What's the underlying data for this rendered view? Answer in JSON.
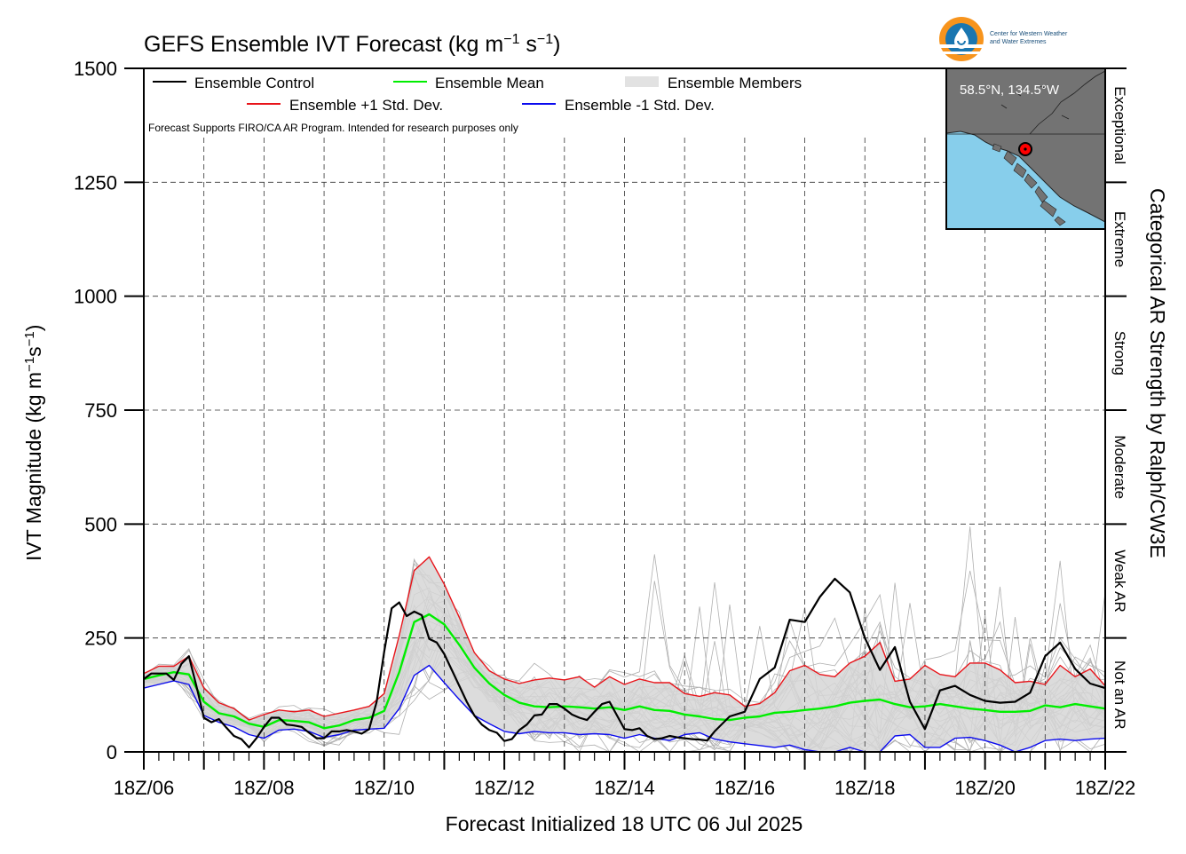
{
  "chart_data": {
    "type": "line",
    "title": "GEFS Ensemble IVT Forecast (kg m",
    "title_units": {
      "sup1": "−1",
      "mid": " s",
      "sup2": "−1",
      "end": ")"
    },
    "ylabel": "IVT Magnitude (kg m",
    "ylabel_units": {
      "sup1": "−1",
      "mid": "s",
      "sup2": "−1",
      "end": ")"
    },
    "xlabel": "Forecast Initialized 18 UTC 06 Jul 2025",
    "right_label": "Categorical AR Strength by Ralph/CW3E",
    "note": "Forecast Supports FIRO/CA AR Program. Intended for research purposes only",
    "ylim": [
      0,
      1500
    ],
    "xlim_hours": [
      0,
      384
    ],
    "x_tick_labels": [
      "18Z/06",
      "18Z/08",
      "18Z/10",
      "18Z/12",
      "18Z/14",
      "18Z/16",
      "18Z/18",
      "18Z/20",
      "18Z/22"
    ],
    "y_tick_labels": [
      "0",
      "250",
      "500",
      "750",
      "1000",
      "1250",
      "1500"
    ],
    "grid": true,
    "legend_position": "top-left",
    "legend": {
      "control": "Ensemble Control",
      "mean": "Ensemble Mean",
      "members": "Ensemble Members",
      "plus_sd": "Ensemble +1 Std. Dev.",
      "minus_sd": "Ensemble -1 Std. Dev."
    },
    "categories_ar": [
      "Not an AR",
      "Weak AR",
      "Moderate",
      "Strong",
      "Extreme",
      "Exceptional"
    ],
    "category_bounds": [
      0,
      250,
      500,
      750,
      1000,
      1250,
      1500
    ],
    "colors": {
      "control": "#000000",
      "mean": "#00ee00",
      "plus_sd": "#e8141a",
      "minus_sd": "#0a0aee",
      "members": "#b0b0b0",
      "shade": "#d6d6d6",
      "grid": "#333333"
    },
    "series": [
      {
        "name": "Ensemble Control",
        "x": [
          0,
          3,
          6,
          9,
          12,
          15,
          18,
          21,
          24,
          27,
          30,
          33,
          36,
          39,
          42,
          45,
          48,
          51,
          54,
          57,
          60,
          63,
          66,
          69,
          72,
          75,
          78,
          81,
          84,
          87,
          90,
          93,
          96,
          99,
          102,
          105,
          108,
          111,
          114,
          117,
          120,
          123,
          126,
          129,
          132,
          135,
          138,
          141,
          144,
          147,
          150,
          153,
          156,
          159,
          162,
          165,
          168,
          171,
          174,
          177,
          180,
          183,
          186,
          189,
          192,
          195,
          198,
          201,
          204,
          207,
          210,
          213,
          216,
          219,
          222,
          225,
          228,
          234,
          240,
          246,
          252,
          258,
          264,
          270,
          276,
          282,
          288,
          294,
          300,
          306,
          312,
          318,
          324,
          330,
          336,
          342,
          348,
          354,
          360,
          366,
          372,
          378,
          384
        ],
        "values": [
          160,
          172,
          172,
          172,
          158,
          193,
          210,
          145,
          75,
          65,
          72,
          53,
          35,
          28,
          10,
          30,
          55,
          75,
          75,
          60,
          58,
          55,
          42,
          30,
          30,
          45,
          45,
          48,
          45,
          40,
          50,
          110,
          220,
          315,
          328,
          298,
          308,
          300,
          248,
          240,
          215,
          180,
          145,
          110,
          80,
          60,
          48,
          42,
          24,
          28,
          48,
          60,
          80,
          82,
          105,
          105,
          95,
          82,
          75,
          70,
          88,
          105,
          110,
          80,
          50,
          48,
          52,
          35,
          28,
          30,
          35,
          32,
          30,
          28,
          27,
          25,
          45,
          78,
          88,
          160,
          185,
          290,
          285,
          340,
          380,
          350,
          250,
          180,
          230,
          110,
          50,
          135,
          145,
          125,
          112,
          108,
          110,
          130,
          210,
          240,
          182,
          150,
          140
        ],
        "color_key": "control"
      },
      {
        "name": "Ensemble Mean",
        "x": [
          0,
          6,
          12,
          18,
          24,
          30,
          36,
          42,
          48,
          54,
          60,
          66,
          72,
          78,
          84,
          90,
          96,
          102,
          108,
          114,
          120,
          126,
          132,
          138,
          144,
          150,
          156,
          162,
          168,
          174,
          180,
          186,
          192,
          198,
          204,
          210,
          216,
          222,
          228,
          234,
          240,
          246,
          252,
          258,
          264,
          270,
          276,
          282,
          288,
          294,
          300,
          306,
          312,
          318,
          324,
          330,
          336,
          342,
          348,
          354,
          360,
          366,
          372,
          378,
          384
        ],
        "values": [
          160,
          168,
          175,
          170,
          110,
          85,
          78,
          62,
          55,
          70,
          68,
          65,
          52,
          58,
          70,
          75,
          90,
          175,
          285,
          302,
          280,
          235,
          185,
          150,
          125,
          108,
          100,
          98,
          100,
          98,
          95,
          98,
          92,
          100,
          92,
          90,
          82,
          78,
          72,
          70,
          75,
          78,
          86,
          88,
          92,
          95,
          100,
          108,
          112,
          115,
          105,
          98,
          100,
          105,
          100,
          95,
          92,
          88,
          88,
          90,
          102,
          98,
          105,
          100,
          95
        ],
        "color_key": "mean"
      },
      {
        "name": "Ensemble +1 Std. Dev.",
        "x": [
          0,
          6,
          12,
          18,
          24,
          30,
          36,
          42,
          48,
          54,
          60,
          66,
          72,
          78,
          84,
          90,
          96,
          102,
          108,
          114,
          120,
          126,
          132,
          138,
          144,
          150,
          156,
          162,
          168,
          174,
          180,
          186,
          192,
          198,
          204,
          210,
          216,
          222,
          228,
          234,
          240,
          246,
          252,
          258,
          264,
          270,
          276,
          282,
          288,
          294,
          300,
          306,
          312,
          318,
          324,
          330,
          336,
          342,
          348,
          354,
          360,
          366,
          372,
          378,
          384
        ],
        "values": [
          172,
          188,
          188,
          210,
          140,
          108,
          95,
          70,
          82,
          92,
          88,
          92,
          78,
          85,
          92,
          100,
          128,
          255,
          398,
          428,
          368,
          295,
          218,
          178,
          160,
          150,
          158,
          162,
          158,
          165,
          142,
          165,
          148,
          160,
          152,
          152,
          128,
          122,
          130,
          125,
          100,
          106,
          130,
          178,
          190,
          170,
          165,
          195,
          210,
          240,
          155,
          160,
          190,
          170,
          165,
          195,
          195,
          180,
          152,
          155,
          148,
          190,
          165,
          182,
          145
        ],
        "color_key": "plus_sd"
      },
      {
        "name": "Ensemble -1 Std. Dev.",
        "x": [
          0,
          6,
          12,
          18,
          24,
          30,
          36,
          42,
          48,
          54,
          60,
          66,
          72,
          78,
          84,
          90,
          96,
          102,
          108,
          114,
          120,
          126,
          132,
          138,
          144,
          150,
          156,
          162,
          168,
          174,
          180,
          186,
          192,
          198,
          204,
          210,
          216,
          222,
          228,
          234,
          240,
          246,
          252,
          258,
          264,
          270,
          276,
          282,
          288,
          294,
          300,
          306,
          312,
          318,
          324,
          330,
          336,
          342,
          348,
          354,
          360,
          366,
          372,
          378,
          384
        ],
        "values": [
          140,
          148,
          156,
          148,
          80,
          65,
          55,
          38,
          30,
          48,
          50,
          45,
          32,
          38,
          48,
          50,
          52,
          95,
          168,
          190,
          152,
          115,
          80,
          62,
          45,
          40,
          45,
          42,
          42,
          38,
          40,
          38,
          30,
          38,
          30,
          25,
          38,
          42,
          28,
          22,
          18,
          14,
          10,
          15,
          5,
          -5,
          0,
          10,
          0,
          -5,
          35,
          38,
          10,
          10,
          30,
          32,
          25,
          15,
          0,
          10,
          25,
          28,
          25,
          28,
          30
        ],
        "color_key": "minus_sd"
      }
    ]
  },
  "inset_map": {
    "location_label": "58.5°N, 134.5°W",
    "lat": 58.5,
    "lon": -134.5,
    "ocean_color": "#87ceeb",
    "land_color": "#737373",
    "marker_color": "#ff0000"
  },
  "logo": {
    "line1": "Center for Western Weather",
    "line2": "and Water Extremes",
    "accent": "#f7941d",
    "primary": "#1a76b0"
  }
}
